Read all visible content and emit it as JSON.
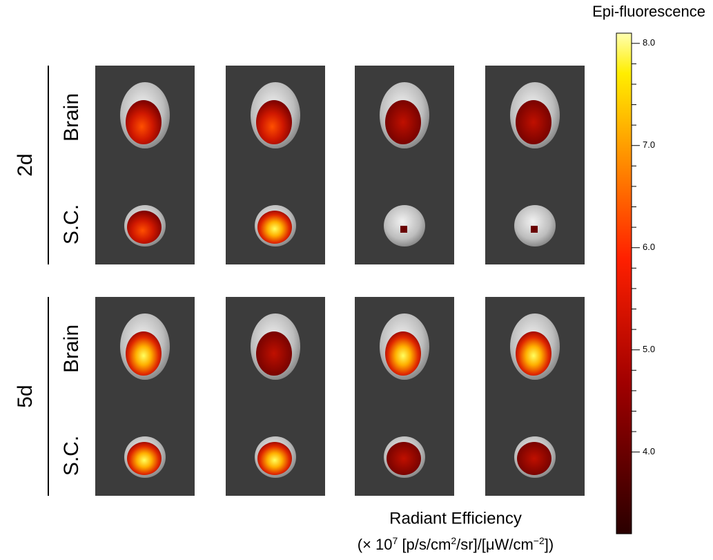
{
  "row_groups": [
    {
      "label": "2d",
      "rows": [
        "Brain",
        "S.C."
      ]
    },
    {
      "label": "5d",
      "rows": [
        "Brain",
        "S.C."
      ]
    }
  ],
  "colorbar": {
    "title": "Epi-fluorescence",
    "lim": [
      3.2,
      8.1
    ],
    "ticks": [
      {
        "value": 4,
        "label": "4.0"
      },
      {
        "value": 5,
        "label": "5.0"
      },
      {
        "value": 6,
        "label": "6.0"
      },
      {
        "value": 7,
        "label": "7.0"
      },
      {
        "value": 8,
        "label": "8.0"
      }
    ]
  },
  "caption": {
    "title": "Radiant Efficiency",
    "units": [
      "(× 10",
      "7",
      " [p/s/cm",
      "2",
      "/sr]/[μW/cm",
      "−2",
      "])"
    ]
  }
}
